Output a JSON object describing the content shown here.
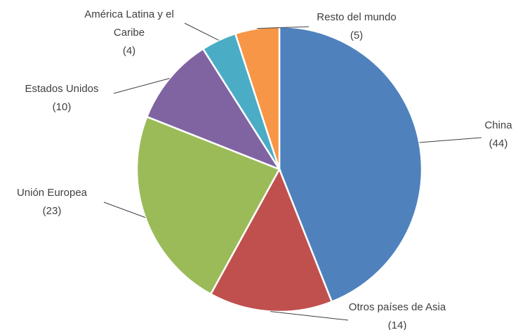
{
  "chart_data": {
    "type": "pie",
    "categories": [
      "China",
      "Otros países de Asia",
      "Unión Europea",
      "Estados Unidos",
      "América Latina y el Caribe",
      "Resto del mundo"
    ],
    "values": [
      44,
      14,
      23,
      10,
      4,
      5
    ],
    "value_labels": [
      "(44)",
      "(14)",
      "(23)",
      "(10)",
      "(4)",
      "(5)"
    ],
    "colors": [
      "#4f81bd",
      "#c0504d",
      "#9bbb59",
      "#8064a2",
      "#4bacc6",
      "#f79646"
    ]
  }
}
